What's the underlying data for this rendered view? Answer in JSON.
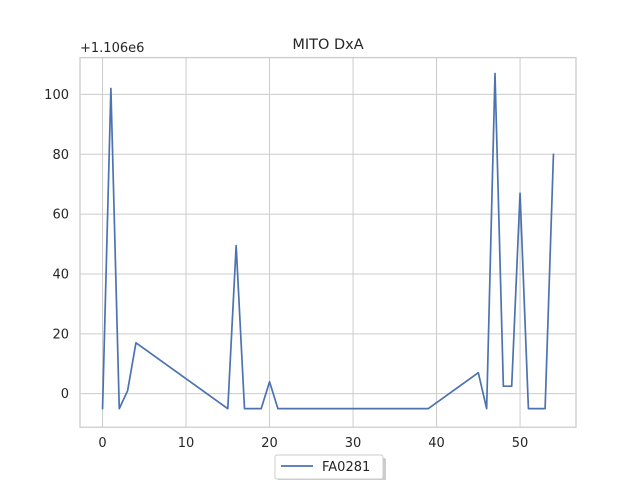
{
  "chart_data": {
    "type": "line",
    "title": "MITO DxA",
    "offset_label": "+1.106e6",
    "offset_value": 1106000,
    "xlabel": "",
    "ylabel": "",
    "xlim": [
      -2.7,
      56.7
    ],
    "ylim": [
      -11.2,
      112.3
    ],
    "xticks": [
      0,
      10,
      20,
      30,
      40,
      50
    ],
    "yticks": [
      0,
      20,
      40,
      60,
      80,
      100
    ],
    "grid": true,
    "legend": {
      "position": "below-center"
    },
    "series": [
      {
        "name": "FA0281",
        "color": "#4c72b0",
        "x": [
          0,
          1,
          2,
          3,
          4,
          15,
          16,
          17,
          18,
          19,
          20,
          21,
          39,
          45,
          46,
          47,
          48,
          49,
          50,
          51,
          52,
          53,
          54
        ],
        "y": [
          -5,
          102,
          -5,
          1,
          17,
          -5,
          49.5,
          -5,
          -5,
          -5,
          4,
          -5,
          -5,
          7,
          -5,
          107,
          2.5,
          2.5,
          67,
          -5,
          -5,
          -5,
          80
        ]
      }
    ]
  }
}
